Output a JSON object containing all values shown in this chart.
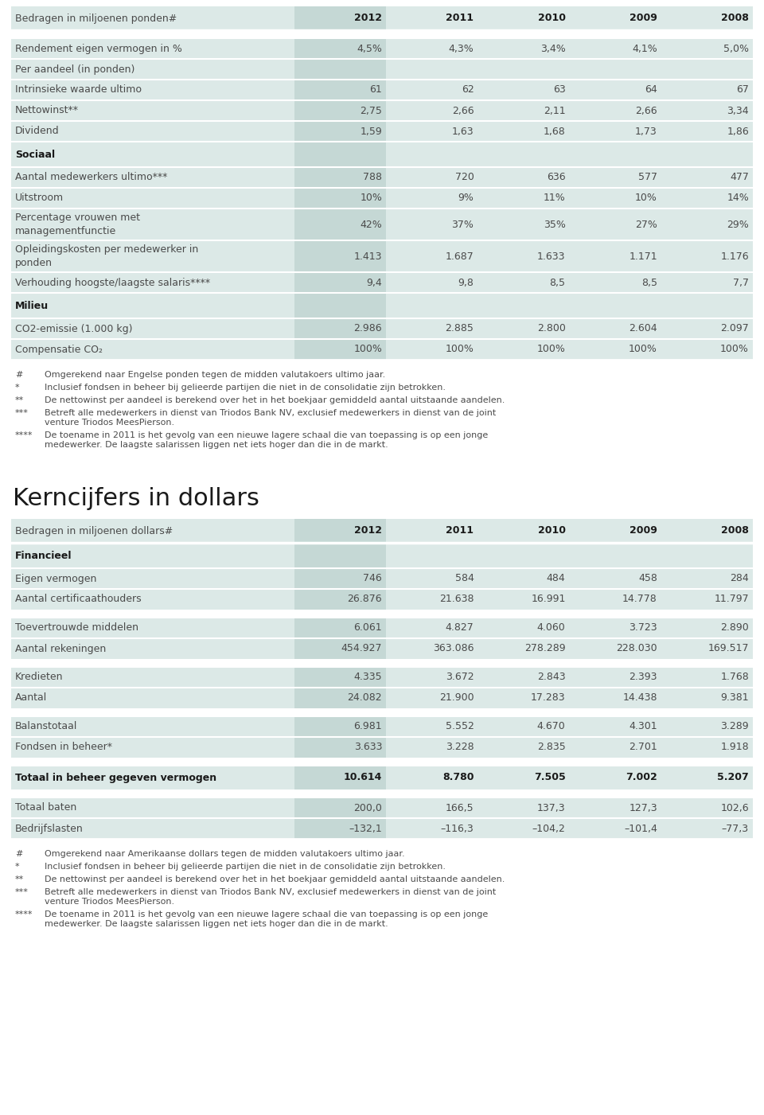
{
  "bg_color": "#ffffff",
  "table_bg": "#dce9e7",
  "highlight_col_bg": "#c5d8d5",
  "separator_color": "#ffffff",
  "text_color": "#4a4a4a",
  "bold_color": "#1a1a1a",
  "table1_header_row": [
    "Bedragen in miljoenen ponden#",
    "2012",
    "2011",
    "2010",
    "2009",
    "2008"
  ],
  "table1_rows": [
    {
      "label": "Rendement eigen vermogen in %",
      "values": [
        "4,5%",
        "4,3%",
        "3,4%",
        "4,1%",
        "5,0%"
      ],
      "bold": false,
      "type": "data_gap"
    },
    {
      "label": "Per aandeel (in ponden)",
      "values": [
        "",
        "",
        "",
        "",
        ""
      ],
      "bold": false,
      "type": "subheader"
    },
    {
      "label": "Intrinsieke waarde ultimo",
      "values": [
        "61",
        "62",
        "63",
        "64",
        "67"
      ],
      "bold": false,
      "type": "data"
    },
    {
      "label": "Nettowinst**",
      "values": [
        "2,75",
        "2,66",
        "2,11",
        "2,66",
        "3,34"
      ],
      "bold": false,
      "type": "data"
    },
    {
      "label": "Dividend",
      "values": [
        "1,59",
        "1,63",
        "1,68",
        "1,73",
        "1,86"
      ],
      "bold": false,
      "type": "data"
    },
    {
      "label": "Sociaal",
      "values": [
        "",
        "",
        "",
        "",
        ""
      ],
      "bold": true,
      "type": "section"
    },
    {
      "label": "Aantal medewerkers ultimo***",
      "values": [
        "788",
        "720",
        "636",
        "577",
        "477"
      ],
      "bold": false,
      "type": "data"
    },
    {
      "label": "Uitstroom",
      "values": [
        "10%",
        "9%",
        "11%",
        "10%",
        "14%"
      ],
      "bold": false,
      "type": "data"
    },
    {
      "label": "Percentage vrouwen met\nmanagementfunctie",
      "values": [
        "42%",
        "37%",
        "35%",
        "27%",
        "29%"
      ],
      "bold": false,
      "type": "data2"
    },
    {
      "label": "Opleidingskosten per medewerker in\nponden",
      "values": [
        "1.413",
        "1.687",
        "1.633",
        "1.171",
        "1.176"
      ],
      "bold": false,
      "type": "data2"
    },
    {
      "label": "Verhouding hoogste/laagste salaris****",
      "values": [
        "9,4",
        "9,8",
        "8,5",
        "8,5",
        "7,7"
      ],
      "bold": false,
      "type": "data"
    },
    {
      "label": "Milieu",
      "values": [
        "",
        "",
        "",
        "",
        ""
      ],
      "bold": true,
      "type": "section"
    },
    {
      "label": "CO2-emissie (1.000 kg)",
      "values": [
        "2.986",
        "2.885",
        "2.800",
        "2.604",
        "2.097"
      ],
      "bold": false,
      "type": "data"
    },
    {
      "label": "Compensatie CO₂",
      "values": [
        "100%",
        "100%",
        "100%",
        "100%",
        "100%"
      ],
      "bold": false,
      "type": "data"
    }
  ],
  "table1_footnotes": [
    [
      "#",
      "Omgerekend naar Engelse ponden tegen de midden valutakoers ultimo jaar."
    ],
    [
      "*",
      "Inclusief fondsen in beheer bij gelieerde partijen die niet in de consolidatie zijn betrokken."
    ],
    [
      "**",
      "De nettowinst per aandeel is berekend over het in het boekjaar gemiddeld aantal uitstaande aandelen."
    ],
    [
      "***",
      "Betreft alle medewerkers in dienst van Triodos Bank NV, exclusief medewerkers in dienst van de joint venture Triodos MeesPierson."
    ],
    [
      "****",
      "De toename in 2011 is het gevolg van een nieuwe lagere schaal die van toepassing is op een jonge medewerker. De laagste salarissen liggen net iets hoger dan die in de markt."
    ]
  ],
  "section2_title": "Kerncijfers in dollars",
  "table2_header_row": [
    "Bedragen in miljoenen dollars#",
    "2012",
    "2011",
    "2010",
    "2009",
    "2008"
  ],
  "table2_rows": [
    {
      "label": "Financieel",
      "values": [
        "",
        "",
        "",
        "",
        ""
      ],
      "bold": true,
      "type": "section"
    },
    {
      "label": "Eigen vermogen",
      "values": [
        "746",
        "584",
        "484",
        "458",
        "284"
      ],
      "bold": false,
      "type": "data"
    },
    {
      "label": "Aantal certificaathouders",
      "values": [
        "26.876",
        "21.638",
        "16.991",
        "14.778",
        "11.797"
      ],
      "bold": false,
      "type": "data"
    },
    {
      "label": "Toevertrouwde middelen",
      "values": [
        "6.061",
        "4.827",
        "4.060",
        "3.723",
        "2.890"
      ],
      "bold": false,
      "type": "data_gap"
    },
    {
      "label": "Aantal rekeningen",
      "values": [
        "454.927",
        "363.086",
        "278.289",
        "228.030",
        "169.517"
      ],
      "bold": false,
      "type": "data"
    },
    {
      "label": "Kredieten",
      "values": [
        "4.335",
        "3.672",
        "2.843",
        "2.393",
        "1.768"
      ],
      "bold": false,
      "type": "data_gap"
    },
    {
      "label": "Aantal",
      "values": [
        "24.082",
        "21.900",
        "17.283",
        "14.438",
        "9.381"
      ],
      "bold": false,
      "type": "data"
    },
    {
      "label": "Balanstotaal",
      "values": [
        "6.981",
        "5.552",
        "4.670",
        "4.301",
        "3.289"
      ],
      "bold": false,
      "type": "data_gap"
    },
    {
      "label": "Fondsen in beheer*",
      "values": [
        "3.633",
        "3.228",
        "2.835",
        "2.701",
        "1.918"
      ],
      "bold": false,
      "type": "data"
    },
    {
      "label": "Totaal in beheer gegeven vermogen",
      "values": [
        "10.614",
        "8.780",
        "7.505",
        "7.002",
        "5.207"
      ],
      "bold": true,
      "type": "total"
    },
    {
      "label": "Totaal baten",
      "values": [
        "200,0",
        "166,5",
        "137,3",
        "127,3",
        "102,6"
      ],
      "bold": false,
      "type": "data_gap"
    },
    {
      "label": "Bedrijfslasten",
      "values": [
        "–132,1",
        "–116,3",
        "–104,2",
        "–101,4",
        "–77,3"
      ],
      "bold": false,
      "type": "data"
    }
  ],
  "table2_footnotes": [
    [
      "#",
      "Omgerekend naar Amerikaanse dollars tegen de midden valutakoers ultimo jaar."
    ],
    [
      "*",
      "Inclusief fondsen in beheer bij gelieerde partijen die niet in de consolidatie zijn betrokken."
    ],
    [
      "**",
      "De nettowinst per aandeel is berekend over het in het boekjaar gemiddeld aantal uitstaande aandelen."
    ],
    [
      "***",
      "Betreft alle medewerkers in dienst van Triodos Bank NV, exclusief medewerkers in dienst van de joint venture Triodos MeesPierson."
    ],
    [
      "****",
      "De toename in 2011 is het gevolg van een nieuwe lagere schaal die van toepassing is op een jonge medewerker. De laagste salarissen liggen net iets hoger dan die in de markt."
    ]
  ]
}
